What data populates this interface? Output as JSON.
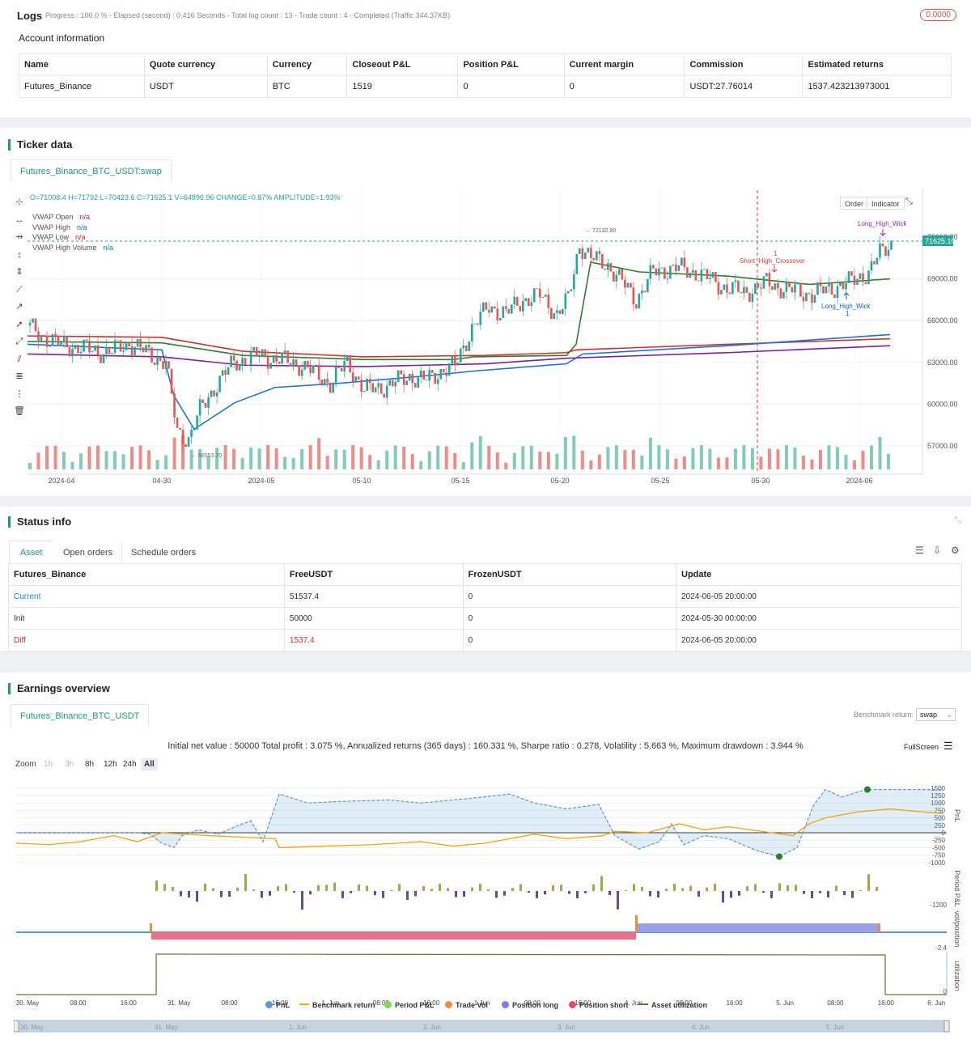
{
  "logs": {
    "title": "Logs",
    "progress_text": "Progress : 100.0 % - Elapsed (second) : 0.416  Seconds - Total log count : 13 - Trade count : 4 - Completed (Traffic 344.37KB)",
    "badge": "0.0000"
  },
  "account": {
    "title": "Account information",
    "headers": [
      "Name",
      "Quote currency",
      "Currency",
      "Closeout P&L",
      "Position P&L",
      "Current margin",
      "Commission",
      "Estimated returns"
    ],
    "row": [
      "Futures_Binance",
      "USDT",
      "BTC",
      "1519",
      "0",
      "0",
      "USDT:27.76014",
      "1537.423213973001"
    ]
  },
  "ticker": {
    "title": "Ticker data",
    "tab": "Futures_Binance_BTC_USDT:swap",
    "ohlc": "O=71008.4 H=71792 L=70423.6 C=71625.1 V=64896.96 CHANGE=0.87% AMPLITUDE=1.93%",
    "legend": [
      {
        "name": "VWAP Open",
        "value": "n/a",
        "color": "#9c27b0"
      },
      {
        "name": "VWAP High",
        "value": "n/a",
        "color": "#1565c0"
      },
      {
        "name": "VWAP Low",
        "value": "n/a",
        "color": "#c62828"
      },
      {
        "name": "VWAP High Volume",
        "value": "n/a",
        "color": "#00897b"
      }
    ],
    "buttons": {
      "order": "Order",
      "indicator": "Indicator"
    },
    "last_price": "71625.10",
    "high_mark": "72132.80",
    "low_mark": "56553.70",
    "price_ticks": [
      "72000.00",
      "69000.00",
      "66000.00",
      "63000.00",
      "60000.00",
      "57000.00"
    ],
    "date_ticks": [
      "2024-04",
      "04-30",
      "2024-05",
      "05-10",
      "05-15",
      "05-20",
      "05-25",
      "05-30",
      "2024-06"
    ],
    "annotations": {
      "short_crossover": "Short_High_Crossover",
      "long_wick_1": "Long_High_Wick",
      "long_wick_2": "Long_High_Wick",
      "marker_1": "1",
      "marker_2": "1"
    }
  },
  "status": {
    "title": "Status info",
    "tabs": [
      "Asset",
      "Open orders",
      "Schedule orders"
    ],
    "headers": [
      "Futures_Binance",
      "FreeUSDT",
      "FrozenUSDT",
      "Update"
    ],
    "rows": [
      [
        "Current",
        "51537.4",
        "0",
        "2024-06-05 20:00:00"
      ],
      [
        "Init",
        "50000",
        "0",
        "2024-05-30 00:00:00"
      ],
      [
        "Diff",
        "1537.4",
        "0",
        "2024-06-05 20:00:00"
      ]
    ]
  },
  "earnings": {
    "title": "Earnings overview",
    "tab": "Futures_Binance_BTC_USDT",
    "benchmark_label": "Benchmark return:",
    "benchmark_value": "swap",
    "summary": "Initial net value : 50000 Total profit : 3.075 %, Annualized returns (365 days) : 160.331 %, Sharpe ratio : 0.278, Volatility : 5.663 %, Maximum drawdown : 3.944 %",
    "fullscreen": "FullScreen",
    "zoom_label": "Zoom",
    "zoom_options": [
      "1h",
      "3h",
      "8h",
      "12h",
      "24h",
      "All"
    ],
    "pnl_ticks": [
      "1500",
      "1250",
      "1000",
      "750",
      "500",
      "250",
      "0",
      "-250",
      "-500",
      "-750",
      "-1000"
    ],
    "axis_titles": [
      "PnL",
      "Period P&L",
      "vol/position",
      "utilization"
    ],
    "period_tick": "-1200",
    "vol_tick": "-2.4",
    "util_tick": "0",
    "time_ticks": [
      "30. May",
      "08:00",
      "16:00",
      "31. May",
      "08:00",
      "16:00",
      "1. Jun",
      "08:00",
      "16:00",
      "1 Jun",
      "08:00",
      "16:00",
      "4. Jun",
      "08:00",
      "16:00",
      "5. Jun",
      "08:00",
      "16:00",
      "6. Jun"
    ],
    "nav_ticks": [
      "30. May",
      "31. May",
      "1. Jun",
      "2. Jun",
      "3. Jun",
      "4. Jun",
      "5. Jun"
    ],
    "legend": [
      {
        "label": "PnL",
        "color": "#5b9bd5",
        "kind": "dot"
      },
      {
        "label": "Benchmark return",
        "color": "#f0a30a",
        "kind": "line"
      },
      {
        "label": "Period P&L",
        "color": "#7ed957",
        "kind": "dot"
      },
      {
        "label": "Trade Vol",
        "color": "#f28c38",
        "kind": "dot"
      },
      {
        "label": "Position long",
        "color": "#7b7fe0",
        "kind": "dot"
      },
      {
        "label": "Position short",
        "color": "#e84a6f",
        "kind": "dot"
      },
      {
        "label": "Asset utilization",
        "color": "#7a6a3a",
        "kind": "line"
      }
    ]
  }
}
